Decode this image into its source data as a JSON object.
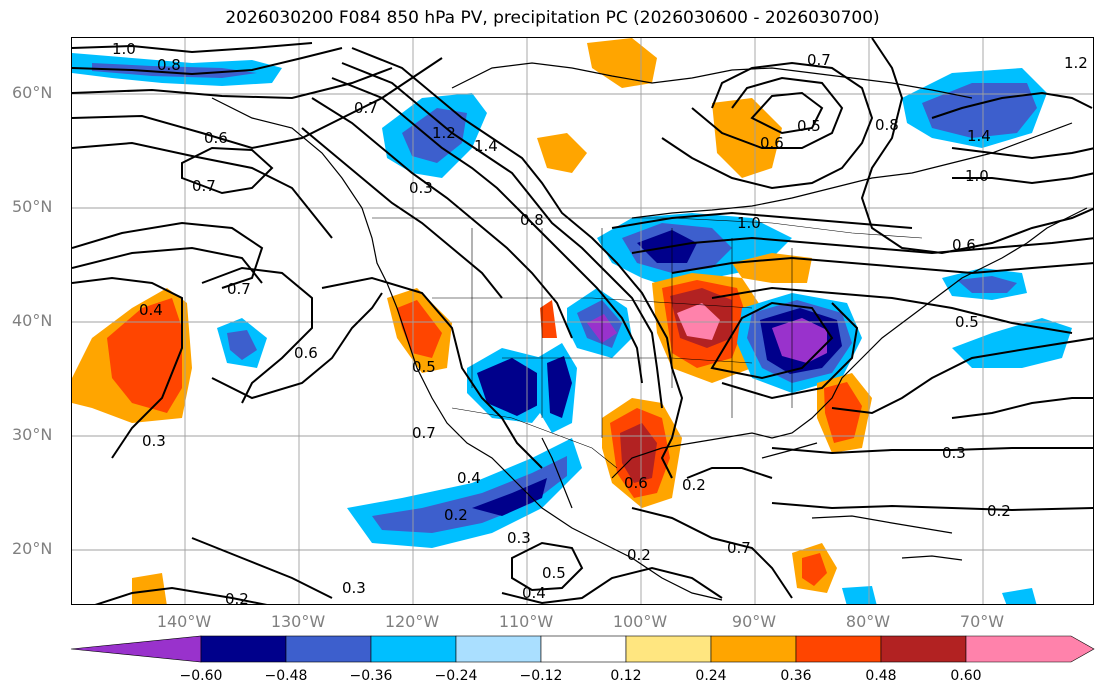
{
  "title": "2026030200 F084 850 hPa PV, precipitation PC (2026030600 - 2026030700)",
  "latitude_labels": [
    "60°N",
    "50°N",
    "40°N",
    "30°N",
    "20°N"
  ],
  "longitude_labels": [
    "140°W",
    "130°W",
    "120°W",
    "110°W",
    "100°W",
    "90°W",
    "80°W",
    "70°W"
  ],
  "colorbar": {
    "ticks": [
      "−0.60",
      "−0.48",
      "−0.36",
      "−0.24",
      "−0.12",
      "0.12",
      "0.24",
      "0.36",
      "0.48",
      "0.60"
    ],
    "colors": [
      "#9932cc",
      "#00008b",
      "#3d5fcd",
      "#00bfff",
      "#aadfff",
      "#ffffff",
      "#ffe680",
      "#ffa500",
      "#ff4500",
      "#b22222",
      "#ff82ab"
    ]
  },
  "contour_labels": [
    "1.0",
    "0.8",
    "0.7",
    "0.6",
    "0.7",
    "1.2",
    "1.4",
    "0.3",
    "0.8",
    "0.4",
    "0.7",
    "0.6",
    "0.5",
    "0.3",
    "0.7",
    "0.4",
    "0.2",
    "0.3",
    "0.5",
    "0.4",
    "0.3",
    "0.2",
    "0.6",
    "0.2",
    "0.2",
    "0.7",
    "0.6",
    "0.5",
    "0.8",
    "1.4",
    "1.0",
    "1.0",
    "0.6",
    "0.5",
    "0.3",
    "0.2",
    "1.2",
    "0.7"
  ]
}
